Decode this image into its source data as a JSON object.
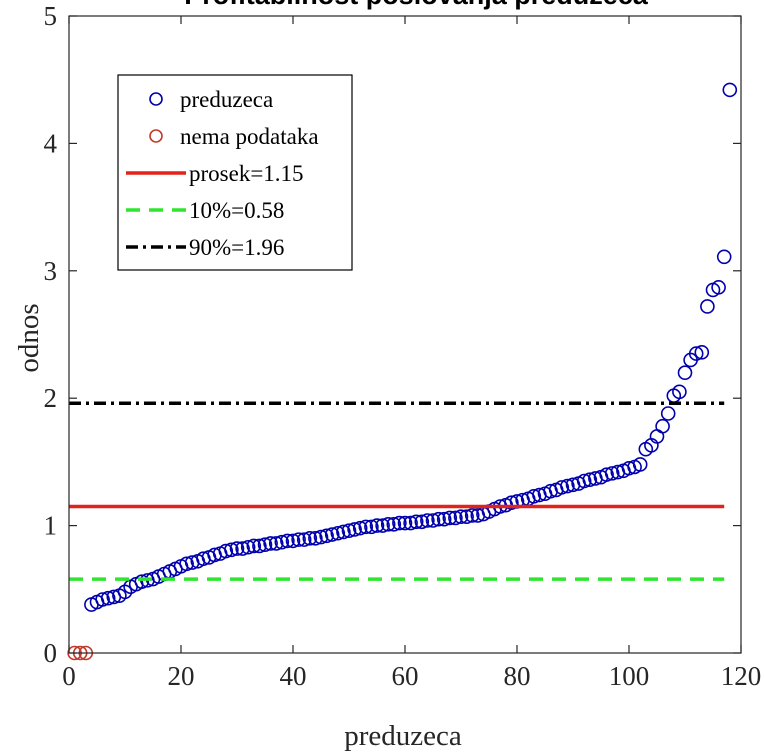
{
  "chart_data": {
    "type": "scatter",
    "title": "Profitabilnost poslovanja preduzeća",
    "xlabel": "preduzeca",
    "ylabel": "odnos",
    "xlim": [
      0,
      120
    ],
    "ylim": [
      0,
      5
    ],
    "xticks": [
      0,
      20,
      40,
      60,
      80,
      100,
      120
    ],
    "yticks": [
      0,
      1,
      2,
      3,
      4,
      5
    ],
    "grid": false,
    "legend_position": "top-left",
    "series": [
      {
        "name": "preduzeca",
        "kind": "markers",
        "marker": "circle",
        "color": "#0000ad",
        "x": [
          4,
          5,
          6,
          7,
          8,
          9,
          10,
          11,
          12,
          13,
          14,
          15,
          16,
          17,
          18,
          19,
          20,
          21,
          22,
          23,
          24,
          25,
          26,
          27,
          28,
          29,
          30,
          31,
          32,
          33,
          34,
          35,
          36,
          37,
          38,
          39,
          40,
          41,
          42,
          43,
          44,
          45,
          46,
          47,
          48,
          49,
          50,
          51,
          52,
          53,
          54,
          55,
          56,
          57,
          58,
          59,
          60,
          61,
          62,
          63,
          64,
          65,
          66,
          67,
          68,
          69,
          70,
          71,
          72,
          73,
          74,
          75,
          76,
          77,
          78,
          79,
          80,
          81,
          82,
          83,
          84,
          85,
          86,
          87,
          88,
          89,
          90,
          91,
          92,
          93,
          94,
          95,
          96,
          97,
          98,
          99,
          100,
          101,
          102,
          103,
          104,
          105,
          106,
          107,
          108,
          109,
          110,
          111,
          112,
          113,
          114,
          115,
          116,
          117,
          118
        ],
        "y": [
          0.38,
          0.4,
          0.42,
          0.43,
          0.44,
          0.45,
          0.48,
          0.52,
          0.54,
          0.56,
          0.57,
          0.58,
          0.6,
          0.62,
          0.64,
          0.66,
          0.68,
          0.7,
          0.71,
          0.72,
          0.74,
          0.75,
          0.77,
          0.78,
          0.8,
          0.81,
          0.82,
          0.82,
          0.83,
          0.84,
          0.84,
          0.85,
          0.86,
          0.86,
          0.87,
          0.88,
          0.88,
          0.89,
          0.89,
          0.9,
          0.9,
          0.91,
          0.92,
          0.93,
          0.94,
          0.95,
          0.96,
          0.97,
          0.98,
          0.99,
          0.99,
          1.0,
          1.0,
          1.01,
          1.01,
          1.02,
          1.02,
          1.02,
          1.03,
          1.03,
          1.04,
          1.04,
          1.05,
          1.05,
          1.06,
          1.06,
          1.07,
          1.07,
          1.08,
          1.08,
          1.09,
          1.11,
          1.13,
          1.15,
          1.16,
          1.18,
          1.19,
          1.2,
          1.21,
          1.23,
          1.24,
          1.25,
          1.27,
          1.28,
          1.3,
          1.31,
          1.32,
          1.33,
          1.35,
          1.36,
          1.37,
          1.38,
          1.4,
          1.41,
          1.42,
          1.43,
          1.45,
          1.46,
          1.48,
          1.6,
          1.63,
          1.7,
          1.78,
          1.88,
          2.02,
          2.05,
          2.2,
          2.3,
          2.35,
          2.36,
          2.72,
          2.85,
          2.87,
          3.11,
          4.42
        ]
      },
      {
        "name": "nema podataka",
        "kind": "markers",
        "marker": "circle",
        "color": "#c0392b",
        "x": [
          1,
          2,
          3
        ],
        "y": [
          0,
          0,
          0
        ]
      },
      {
        "name": "prosek=1.15",
        "kind": "hline",
        "value": 1.15,
        "style": "solid",
        "color": "#e2231a",
        "x_range": [
          0,
          117
        ]
      },
      {
        "name": "10%=0.58",
        "kind": "hline",
        "value": 0.58,
        "style": "dashed",
        "color": "#2ee62e",
        "x_range": [
          0,
          117
        ]
      },
      {
        "name": "90%=1.96",
        "kind": "hline",
        "value": 1.96,
        "style": "dashdot",
        "color": "#000000",
        "x_range": [
          0,
          117
        ]
      }
    ]
  }
}
